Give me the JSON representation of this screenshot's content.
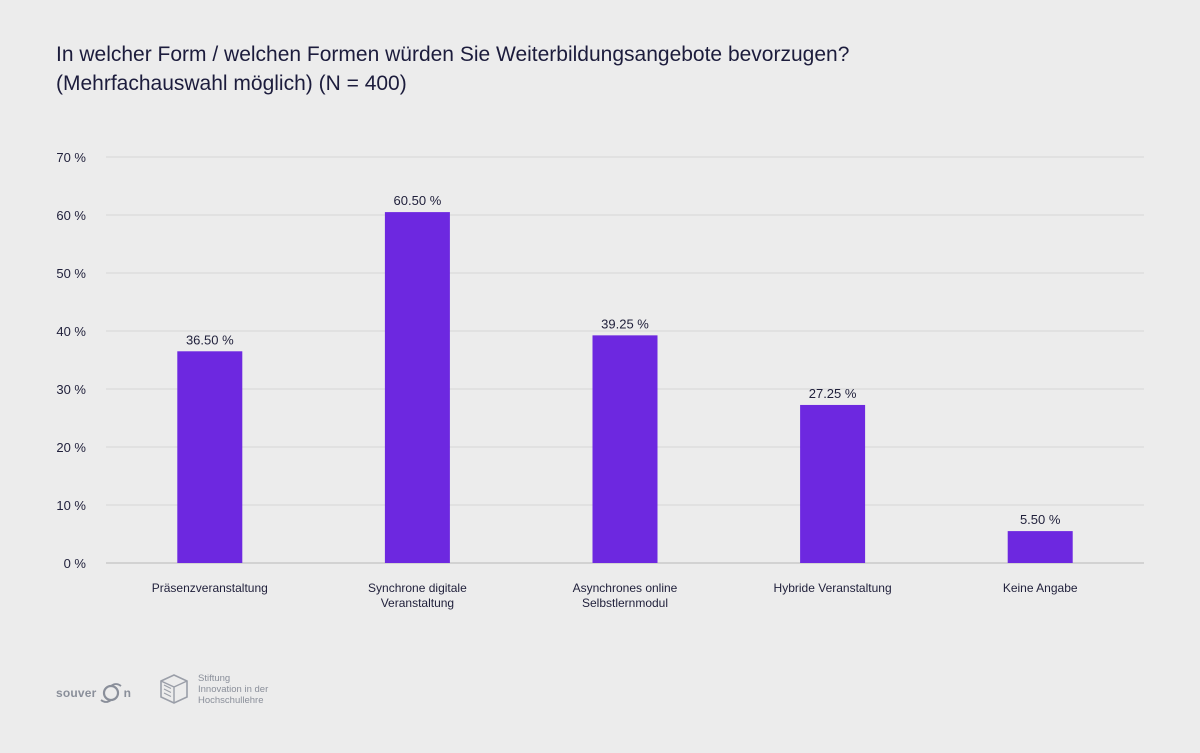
{
  "title_lines": [
    "In welcher Form / welchen Formen würden Sie Weiterbildungsangebote bevorzugen?",
    "(Mehrfachauswahl möglich) (N = 400)"
  ],
  "chart_data": {
    "type": "bar",
    "title": "In welcher Form / welchen Formen würden Sie Weiterbildungsangebote bevorzugen? (Mehrfachauswahl möglich) (N = 400)",
    "categories": [
      [
        "Präsenzveranstaltung"
      ],
      [
        "Synchrone digitale",
        "Veranstaltung"
      ],
      [
        "Asynchrones online",
        "Selbstlernmodul"
      ],
      [
        "Hybride Veranstaltung"
      ],
      [
        "Keine Angabe"
      ]
    ],
    "values": [
      36.5,
      60.5,
      39.25,
      27.25,
      5.5
    ],
    "value_labels": [
      "36.50 %",
      "60.50 %",
      "39.25 %",
      "27.25 %",
      "5.50 %"
    ],
    "yticks": [
      0,
      10,
      20,
      30,
      40,
      50,
      60,
      70
    ],
    "ytick_labels": [
      "0 %",
      "10 %",
      "20 %",
      "30 %",
      "40 %",
      "50 %",
      "60 %",
      "70 %"
    ],
    "ylim": [
      0,
      70
    ],
    "xlabel": "",
    "ylabel": "",
    "grid": true,
    "bar_color": "#6d28e0",
    "grid_color": "#d6d6d6",
    "axis_color": "#b8b8b8"
  },
  "logos": {
    "souveran": {
      "text_a": "souver",
      "text_b": "n"
    },
    "stiftung": {
      "lines": [
        "Stiftung",
        "Innovation in der",
        "Hochschullehre"
      ]
    }
  }
}
